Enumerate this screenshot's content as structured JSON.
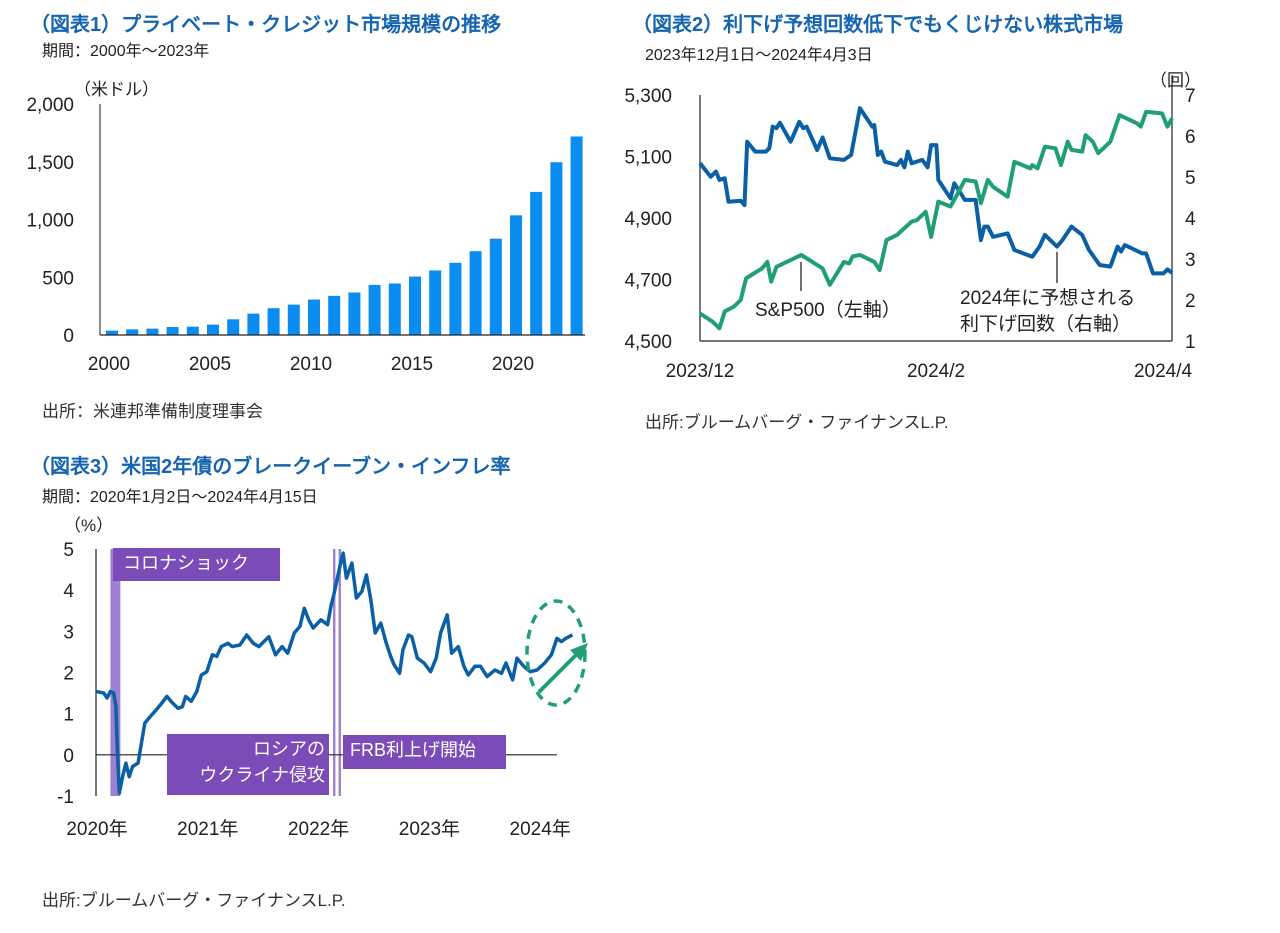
{
  "colors": {
    "title": "#1565b0",
    "bar": "#0a8cf0",
    "sp500": "#0b5fa5",
    "cuts": "#1f9e78",
    "annot_box": "#7b4bb8",
    "covid_band": "#9f80d0"
  },
  "chart_data": [
    {
      "type": "bar",
      "title": "（図表1）プライベート・クレジット市場規模の推移",
      "subtitle": "期間：2000年～2023年",
      "ylabel": "（米ドル）",
      "source": "出所：米連邦準備制度理事会",
      "ylim": [
        0,
        2000
      ],
      "yticks": [
        "2,000",
        "1,500",
        "1,000",
        "500",
        "0"
      ],
      "ytick_values": [
        2000,
        1500,
        1000,
        500,
        0
      ],
      "xticks": [
        "2000",
        "2005",
        "2010",
        "2015",
        "2020"
      ],
      "categories": [
        2000,
        2001,
        2002,
        2003,
        2004,
        2005,
        2006,
        2007,
        2008,
        2009,
        2010,
        2011,
        2012,
        2013,
        2014,
        2015,
        2016,
        2017,
        2018,
        2019,
        2020,
        2021,
        2022,
        2023
      ],
      "values": [
        38,
        49,
        55,
        69,
        72,
        90,
        136,
        185,
        232,
        263,
        307,
        339,
        368,
        434,
        446,
        506,
        559,
        625,
        726,
        834,
        1036,
        1239,
        1496,
        1719
      ]
    },
    {
      "type": "line",
      "title": "（図表2）利下げ予想回数低下でもくじけない株式市場",
      "subtitle": "2023年12月1日～2024年4月3日",
      "source": "出所:ブルームバーグ・ファイナンスL.P.",
      "x_unit": "days since 2023-12-01",
      "xlim": [
        0,
        124
      ],
      "xticks": [
        {
          "label": "2023/12",
          "x": 0
        },
        {
          "label": "2024/2",
          "x": 62
        },
        {
          "label": "2024/4",
          "x": 122
        }
      ],
      "ylim_left": [
        4500,
        5300
      ],
      "yticks_left": [
        "5,300",
        "5,100",
        "4,900",
        "4,700",
        "4,500"
      ],
      "ytick_values_left": [
        5300,
        5100,
        4900,
        4700,
        4500
      ],
      "ylim_right": [
        1,
        7
      ],
      "yticks_right": [
        "7",
        "6",
        "5",
        "4",
        "3",
        "2",
        "1"
      ],
      "ylabel_right": "（回）",
      "series": [
        {
          "name": "S&P500（左軸）",
          "axis": "left",
          "x": [
            0,
            2.8,
            4.2,
            5.1,
            6.5,
            7.5,
            10.7,
            11.7,
            12.4,
            14.5,
            17.3,
            18.2,
            19.1,
            20.1,
            21,
            23.8,
            26.1,
            27.1,
            28,
            30.8,
            32.2,
            34.1,
            37.8,
            39.7,
            42,
            45.3,
            45.8,
            46.7,
            47.6,
            48.6,
            51.8,
            52.8,
            53.7,
            54.6,
            55.6,
            58.4,
            59.8,
            60.7,
            62.1,
            62.6,
            65.8,
            66.8,
            69.6,
            72.4,
            73.8,
            74.7,
            75.6,
            77,
            80.8,
            82.6,
            87.3,
            89.2,
            90.6,
            93.8,
            95.2,
            97.6,
            100.4,
            102.2,
            105,
            107.8,
            109.7,
            110.6,
            111.6,
            116.2,
            117.2,
            119,
            121.8,
            122.8,
            124
          ],
          "y": [
            5078,
            5034,
            5051,
            5024,
            5029,
            4953,
            4956,
            4942,
            5148,
            5116,
            5116,
            5127,
            5197,
            5192,
            5210,
            5148,
            5213,
            5192,
            5197,
            5121,
            5162,
            5094,
            5089,
            5105,
            5257,
            5197,
            5202,
            5105,
            5116,
            5083,
            5072,
            5089,
            5065,
            5116,
            5078,
            5089,
            5065,
            5137,
            5137,
            5024,
            4964,
            5013,
            4959,
            4959,
            4828,
            4872,
            4872,
            4839,
            4850,
            4796,
            4774,
            4807,
            4845,
            4807,
            4828,
            4872,
            4845,
            4796,
            4747,
            4742,
            4807,
            4791,
            4812,
            4785,
            4785,
            4720,
            4720,
            4733,
            4722
          ]
        },
        {
          "name": "2024年に予想される利下げ回数（右軸）",
          "axis": "right",
          "x": [
            0,
            3.3,
            5.1,
            6.5,
            8.9,
            10.7,
            12.1,
            13.5,
            16.3,
            17.7,
            18.7,
            20.1,
            26.6,
            32.2,
            34.1,
            37.8,
            39.2,
            40.1,
            42,
            45.8,
            47.2,
            49,
            51.8,
            53.2,
            55.6,
            57,
            59.3,
            60.7,
            62.6,
            65.8,
            67.7,
            69.6,
            72.4,
            73.8,
            75.6,
            77,
            80.8,
            82.6,
            86.8,
            87.3,
            88.7,
            90.6,
            93.4,
            94.8,
            96.6,
            97.6,
            100.4,
            101.3,
            103.2,
            104.6,
            107.8,
            110.2,
            114.8,
            115.8,
            117.2,
            121.4,
            122.8,
            124
          ],
          "y": [
            1.67,
            1.47,
            1.31,
            1.72,
            1.84,
            2.0,
            2.53,
            2.61,
            2.77,
            2.93,
            2.45,
            2.81,
            3.1,
            2.77,
            2.37,
            2.93,
            2.89,
            3.06,
            3.1,
            2.93,
            2.73,
            3.46,
            3.59,
            3.71,
            3.91,
            3.95,
            4.15,
            3.54,
            4.4,
            4.28,
            4.6,
            4.93,
            4.89,
            4.36,
            4.93,
            4.76,
            4.52,
            5.37,
            5.21,
            5.29,
            5.21,
            5.74,
            5.7,
            5.29,
            5.86,
            5.66,
            5.62,
            6.02,
            5.86,
            5.58,
            5.86,
            6.51,
            6.31,
            6.23,
            6.59,
            6.55,
            6.23,
            6.43
          ]
        }
      ],
      "annotations": {
        "sp500_line1": "S&P500（左軸）",
        "cuts_line1": "2024年に予想される",
        "cuts_line2": "利下げ回数（右軸）"
      }
    },
    {
      "type": "line",
      "title": "（図表3）米国2年債のブレークイーブン・インフレ率",
      "subtitle": "期間：2020年1月2日～2024年4月15日",
      "ylabel": "（%）",
      "source": "出所:ブルームバーグ・ファイナンスL.P.",
      "x_unit": "years since 2020-01-01",
      "xlim": [
        0,
        4.3
      ],
      "xticks": [
        {
          "label": "2020年",
          "x": 0
        },
        {
          "label": "2021年",
          "x": 1
        },
        {
          "label": "2022年",
          "x": 2
        },
        {
          "label": "2023年",
          "x": 3
        },
        {
          "label": "2024年",
          "x": 4
        }
      ],
      "ylim": [
        -1,
        5
      ],
      "yticks": [
        "5",
        "4",
        "3",
        "2",
        "1",
        "0",
        "-1"
      ],
      "ytick_values": [
        5,
        4,
        3,
        2,
        1,
        0,
        -1
      ],
      "series": [
        {
          "name": "米国2年債ブレークイーブン・インフレ率",
          "x": [
            0,
            0.07,
            0.1,
            0.13,
            0.16,
            0.18,
            0.19,
            0.21,
            0.24,
            0.27,
            0.3,
            0.33,
            0.38,
            0.41,
            0.44,
            0.49,
            0.53,
            0.58,
            0.64,
            0.69,
            0.74,
            0.78,
            0.81,
            0.86,
            0.91,
            0.95,
            1.0,
            1.05,
            1.09,
            1.13,
            1.19,
            1.23,
            1.3,
            1.36,
            1.42,
            1.47,
            1.53,
            1.56,
            1.62,
            1.68,
            1.73,
            1.79,
            1.84,
            1.88,
            1.92,
            1.96,
            2.03,
            2.09,
            2.12,
            2.15,
            2.2,
            2.23,
            2.26,
            2.31,
            2.35,
            2.4,
            2.44,
            2.48,
            2.52,
            2.57,
            2.62,
            2.66,
            2.69,
            2.74,
            2.77,
            2.82,
            2.85,
            2.9,
            2.96,
            3.02,
            3.07,
            3.11,
            3.17,
            3.21,
            3.27,
            3.32,
            3.36,
            3.42,
            3.47,
            3.53,
            3.6,
            3.66,
            3.7,
            3.76,
            3.8,
            3.86,
            3.92,
            3.98,
            4.05,
            4.11,
            4.16,
            4.2,
            4.24,
            4.3
          ],
          "y": [
            1.54,
            1.5,
            1.38,
            1.54,
            1.5,
            1.17,
            0.28,
            -0.93,
            -0.53,
            -0.2,
            -0.53,
            -0.28,
            -0.2,
            0.28,
            0.77,
            0.93,
            1.05,
            1.21,
            1.42,
            1.26,
            1.13,
            1.17,
            1.42,
            1.3,
            1.54,
            1.94,
            2.02,
            2.43,
            2.39,
            2.63,
            2.71,
            2.63,
            2.67,
            2.91,
            2.71,
            2.63,
            2.79,
            2.87,
            2.43,
            2.63,
            2.47,
            2.96,
            3.12,
            3.56,
            3.28,
            3.08,
            3.28,
            3.16,
            3.6,
            3.93,
            4.57,
            4.9,
            4.29,
            4.66,
            3.81,
            3.97,
            4.37,
            3.77,
            2.96,
            3.2,
            2.71,
            2.39,
            2.19,
            1.98,
            2.55,
            2.91,
            2.87,
            2.35,
            2.23,
            2.02,
            2.35,
            2.96,
            3.4,
            2.47,
            2.63,
            2.15,
            1.94,
            2.15,
            2.15,
            1.9,
            2.06,
            1.98,
            2.23,
            1.82,
            2.35,
            2.15,
            2.02,
            2.06,
            2.23,
            2.43,
            2.83,
            2.75,
            2.83,
            2.91
          ]
        }
      ],
      "shaded_period": {
        "label": "コロナショック",
        "x": [
          0.13,
          0.22
        ]
      },
      "event_lines": [
        {
          "label_line1": "ロシアの",
          "label_line2": "ウクライナ侵攻",
          "x": 2.15
        },
        {
          "label": "FRB利上げ開始",
          "x": 2.2
        }
      ]
    }
  ]
}
